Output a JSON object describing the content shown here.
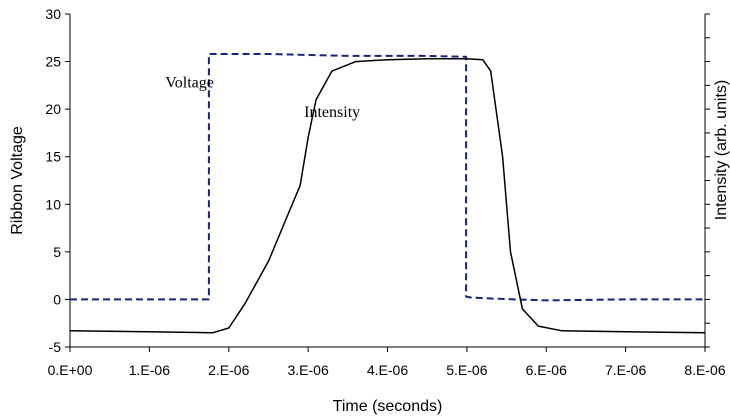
{
  "chart_data": {
    "type": "line",
    "title": "",
    "xlabel": "Time (seconds)",
    "ylabel": "Ribbon Voltage",
    "y2label": "Intensity (arb. units)",
    "xlim": [
      0,
      8e-06
    ],
    "ylim": [
      -5,
      30
    ],
    "xticks": [
      0,
      1e-06,
      2e-06,
      3e-06,
      4e-06,
      5e-06,
      6e-06,
      7e-06,
      8e-06
    ],
    "xtick_labels": [
      "0.E+00",
      "1.E-06",
      "2.E-06",
      "3.E-06",
      "4.E-06",
      "5.E-06",
      "6.E-06",
      "7.E-06",
      "8.E-06"
    ],
    "yticks": [
      -5,
      0,
      5,
      10,
      15,
      20,
      25,
      30
    ],
    "ytick_labels": [
      "-5",
      "0",
      "5",
      "10",
      "15",
      "20",
      "25",
      "30"
    ],
    "y2_tick_count": 14,
    "grid": false,
    "legend": "none",
    "annotations": [
      {
        "text": "Voltage",
        "x": 1.2e-06,
        "y": 22.3
      },
      {
        "text": "Intensity",
        "x": 2.95e-06,
        "y": 19.2
      }
    ],
    "series": [
      {
        "label": "Voltage",
        "color": "#1a237e",
        "dash": "dashed",
        "x": [
          0,
          1.75e-06,
          1.75e-06,
          2.5e-06,
          3.5e-06,
          4.5e-06,
          4.99e-06,
          4.99e-06,
          5.05e-06,
          5.3e-06,
          5.6e-06,
          6e-06,
          7e-06,
          8e-06
        ],
        "y": [
          0,
          0,
          25.8,
          25.8,
          25.6,
          25.6,
          25.5,
          0.3,
          0.2,
          0.1,
          0,
          -0.1,
          0,
          0
        ]
      },
      {
        "label": "Intensity",
        "color": "#000000",
        "dash": "solid",
        "x": [
          0,
          1e-06,
          1.8e-06,
          2e-06,
          2.2e-06,
          2.5e-06,
          2.7e-06,
          2.9e-06,
          3e-06,
          3.1e-06,
          3.3e-06,
          3.6e-06,
          4e-06,
          4.5e-06,
          5e-06,
          5.2e-06,
          5.3e-06,
          5.45e-06,
          5.55e-06,
          5.7e-06,
          5.9e-06,
          6.2e-06,
          7e-06,
          8e-06
        ],
        "y": [
          -3.3,
          -3.4,
          -3.5,
          -3.0,
          -0.5,
          4,
          8,
          12,
          17,
          21,
          24,
          25,
          25.2,
          25.3,
          25.3,
          25.2,
          24,
          15,
          5,
          -1,
          -2.8,
          -3.3,
          -3.4,
          -3.5
        ]
      }
    ]
  }
}
